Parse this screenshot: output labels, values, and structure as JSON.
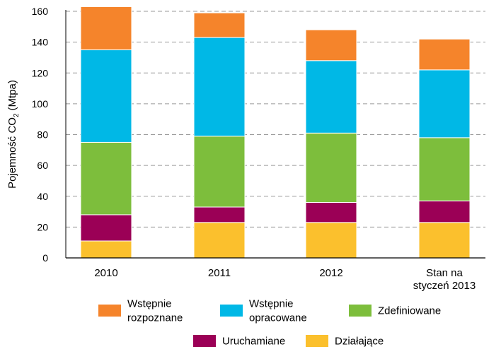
{
  "chart_data": {
    "type": "bar",
    "stacked": true,
    "ylabel": "Pojemność CO",
    "ylabel_subscript": "2",
    "ylabel_unit": "(Mtpa)",
    "ylim": [
      0,
      160
    ],
    "yticks": [
      0,
      20,
      40,
      60,
      80,
      100,
      120,
      140,
      160
    ],
    "grid": "horizontal-dashed",
    "categories": [
      [
        "2010"
      ],
      [
        "2011"
      ],
      [
        "2012"
      ],
      [
        "Stan na",
        "styczeń  2013"
      ]
    ],
    "series": [
      {
        "name": "Działające",
        "label_lines": [
          "Działające"
        ],
        "color": "#FBC02D",
        "values": [
          11,
          23,
          23,
          23
        ]
      },
      {
        "name": "Uruchamiane",
        "label_lines": [
          "Uruchamiane"
        ],
        "color": "#9B0056",
        "values": [
          17,
          10,
          13,
          14
        ]
      },
      {
        "name": "Zdefiniowane",
        "label_lines": [
          "Zdefiniowane"
        ],
        "color": "#7DBE3C",
        "values": [
          47,
          46,
          45,
          41
        ]
      },
      {
        "name": "Wstępnie opracowane",
        "label_lines": [
          "Wstępnie",
          "opracowane"
        ],
        "color": "#00B8E6",
        "values": [
          60,
          64,
          47,
          44
        ]
      },
      {
        "name": "Wstępnie rozpoznane",
        "label_lines": [
          "Wstępnie",
          "rozpoznane"
        ],
        "color": "#F5842B",
        "values": [
          28,
          16,
          20,
          20
        ]
      }
    ],
    "legend_order": [
      "Wstępnie rozpoznane",
      "Wstępnie opracowane",
      "Zdefiniowane",
      "Uruchamiane",
      "Działające"
    ]
  }
}
